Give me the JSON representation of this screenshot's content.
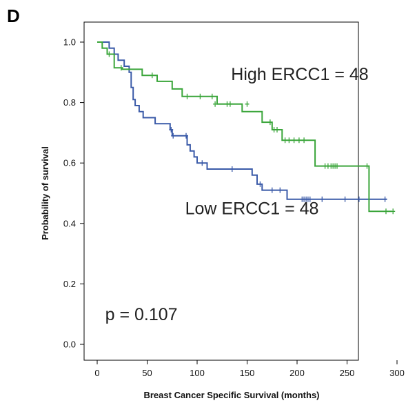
{
  "panel_label": "D",
  "chart_data": {
    "type": "line",
    "title": "",
    "xlabel": "Breast Cancer Specific Survival (months)",
    "ylabel": "Probability of survival",
    "xlim": [
      0,
      300
    ],
    "ylim": [
      0.0,
      1.0
    ],
    "xticks": [
      0,
      50,
      100,
      150,
      200,
      250,
      300
    ],
    "xtick_labels": [
      "0",
      "50",
      "100",
      "150",
      "200",
      "250",
      "300"
    ],
    "yticks": [
      0.0,
      0.2,
      0.4,
      0.6,
      0.8,
      1.0
    ],
    "ytick_labels": [
      "0.0",
      "0.2",
      "0.4",
      "0.6",
      "0.8",
      "1.0"
    ],
    "grid": false,
    "legend": "none",
    "series": [
      {
        "color": "#3a5aa8",
        "step": [
          [
            0,
            1.0
          ],
          [
            12,
            1.0
          ],
          [
            12,
            0.98
          ],
          [
            17,
            0.98
          ],
          [
            17,
            0.96
          ],
          [
            21,
            0.96
          ],
          [
            21,
            0.94
          ],
          [
            27,
            0.94
          ],
          [
            27,
            0.92
          ],
          [
            32,
            0.92
          ],
          [
            32,
            0.9
          ],
          [
            34,
            0.9
          ],
          [
            34,
            0.85
          ],
          [
            36,
            0.85
          ],
          [
            36,
            0.81
          ],
          [
            38,
            0.81
          ],
          [
            38,
            0.79
          ],
          [
            42,
            0.79
          ],
          [
            42,
            0.77
          ],
          [
            46,
            0.77
          ],
          [
            46,
            0.75
          ],
          [
            58,
            0.75
          ],
          [
            58,
            0.73
          ],
          [
            73,
            0.73
          ],
          [
            73,
            0.71
          ],
          [
            75,
            0.71
          ],
          [
            75,
            0.69
          ],
          [
            90,
            0.69
          ],
          [
            90,
            0.66
          ],
          [
            93,
            0.66
          ],
          [
            93,
            0.64
          ],
          [
            97,
            0.64
          ],
          [
            97,
            0.62
          ],
          [
            100,
            0.62
          ],
          [
            100,
            0.6
          ],
          [
            110,
            0.6
          ],
          [
            110,
            0.58
          ],
          [
            155,
            0.58
          ],
          [
            155,
            0.56
          ],
          [
            160,
            0.56
          ],
          [
            160,
            0.53
          ],
          [
            165,
            0.53
          ],
          [
            165,
            0.51
          ],
          [
            190,
            0.51
          ],
          [
            190,
            0.48
          ],
          [
            290,
            0.48
          ]
        ],
        "censored": [
          [
            74,
            0.71
          ],
          [
            76,
            0.69
          ],
          [
            89,
            0.69
          ],
          [
            105,
            0.6
          ],
          [
            135,
            0.58
          ],
          [
            163,
            0.53
          ],
          [
            175,
            0.51
          ],
          [
            183,
            0.51
          ],
          [
            205,
            0.48
          ],
          [
            207,
            0.48
          ],
          [
            209,
            0.48
          ],
          [
            211,
            0.48
          ],
          [
            213,
            0.48
          ],
          [
            225,
            0.48
          ],
          [
            248,
            0.48
          ],
          [
            262,
            0.48
          ],
          [
            288,
            0.48
          ]
        ]
      },
      {
        "color": "#3aa53a",
        "step": [
          [
            0,
            1.0
          ],
          [
            5,
            1.0
          ],
          [
            5,
            0.98
          ],
          [
            10,
            0.98
          ],
          [
            10,
            0.96
          ],
          [
            17,
            0.96
          ],
          [
            17,
            0.915
          ],
          [
            25,
            0.915
          ],
          [
            25,
            0.91
          ],
          [
            45,
            0.91
          ],
          [
            45,
            0.89
          ],
          [
            60,
            0.89
          ],
          [
            60,
            0.87
          ],
          [
            75,
            0.87
          ],
          [
            75,
            0.845
          ],
          [
            85,
            0.845
          ],
          [
            85,
            0.82
          ],
          [
            120,
            0.82
          ],
          [
            120,
            0.795
          ],
          [
            145,
            0.795
          ],
          [
            145,
            0.77
          ],
          [
            165,
            0.77
          ],
          [
            165,
            0.735
          ],
          [
            175,
            0.735
          ],
          [
            175,
            0.71
          ],
          [
            185,
            0.71
          ],
          [
            185,
            0.675
          ],
          [
            218,
            0.675
          ],
          [
            218,
            0.59
          ],
          [
            272,
            0.59
          ],
          [
            272,
            0.44
          ],
          [
            295,
            0.44
          ]
        ],
        "censored": [
          [
            12,
            0.96
          ],
          [
            24,
            0.915
          ],
          [
            55,
            0.89
          ],
          [
            90,
            0.82
          ],
          [
            103,
            0.82
          ],
          [
            115,
            0.82
          ],
          [
            118,
            0.795
          ],
          [
            130,
            0.795
          ],
          [
            133,
            0.795
          ],
          [
            150,
            0.795
          ],
          [
            173,
            0.735
          ],
          [
            177,
            0.71
          ],
          [
            180,
            0.71
          ],
          [
            188,
            0.675
          ],
          [
            192,
            0.675
          ],
          [
            197,
            0.675
          ],
          [
            202,
            0.675
          ],
          [
            207,
            0.675
          ],
          [
            228,
            0.59
          ],
          [
            231,
            0.59
          ],
          [
            234,
            0.59
          ],
          [
            236,
            0.59
          ],
          [
            238,
            0.59
          ],
          [
            240,
            0.59
          ],
          [
            270,
            0.59
          ],
          [
            289,
            0.44
          ],
          [
            296,
            0.44
          ]
        ]
      }
    ],
    "annotations": [
      {
        "text": "High ERCC1 = 48",
        "x": 134,
        "y": 0.875
      },
      {
        "text": "Low ERCC1 = 48",
        "x": 88,
        "y": 0.43
      },
      {
        "text": "p = 0.107",
        "x": 8,
        "y": 0.08
      }
    ]
  }
}
